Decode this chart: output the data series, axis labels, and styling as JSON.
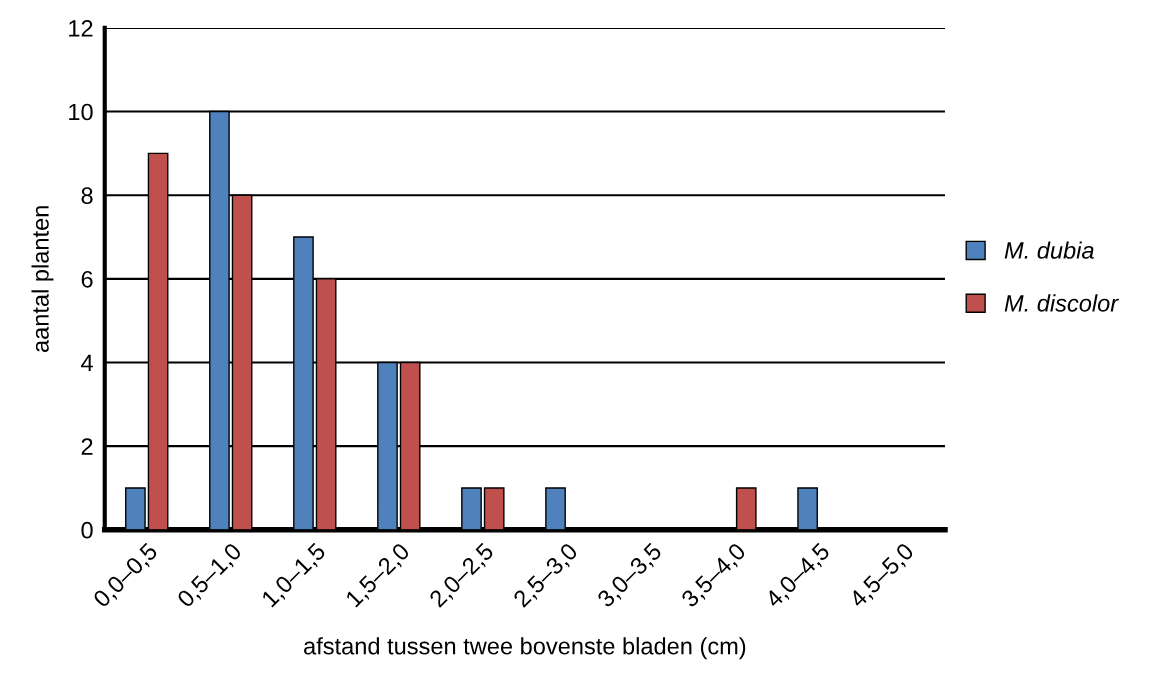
{
  "chart_data": {
    "type": "bar",
    "xlabel": "afstand tussen twee bovenste bladen (cm)",
    "ylabel": "aantal planten",
    "categories": [
      "0,0–0,5",
      "0,5–1,0",
      "1,0–1,5",
      "1,5–2,0",
      "2,0–2,5",
      "2,5–3,0",
      "3,0–3,5",
      "3,5–4,0",
      "4,0–4,5",
      "4,5–5,0"
    ],
    "series": [
      {
        "name": "M. dubia",
        "color": "#4f81bd",
        "values": [
          1,
          10,
          7,
          4,
          1,
          1,
          0,
          0,
          1,
          0
        ]
      },
      {
        "name": "M. discolor",
        "color": "#c0504d",
        "values": [
          9,
          8,
          6,
          4,
          1,
          0,
          0,
          1,
          0,
          0
        ]
      }
    ],
    "ylim": [
      0,
      12
    ],
    "yticks": [
      0,
      2,
      4,
      6,
      8,
      10,
      12
    ],
    "grid": "y",
    "legend": "right"
  }
}
